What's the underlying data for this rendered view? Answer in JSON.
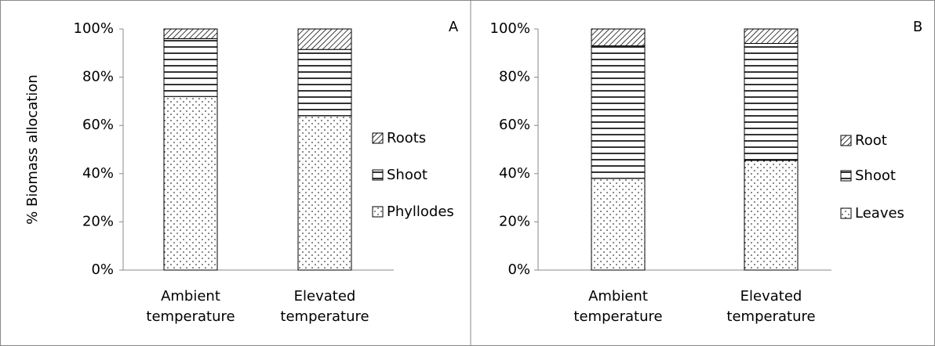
{
  "chart_data": [
    {
      "type": "stacked_bar",
      "title": "A",
      "y_label": "% Biomass allocation",
      "categories": [
        "Ambient temperature",
        "Elevated temperature"
      ],
      "series": [
        {
          "name": "Phyllodes",
          "pattern": "dots",
          "color": "#000000",
          "values": [
            72,
            64
          ]
        },
        {
          "name": "Shoot",
          "pattern": "horizontal",
          "color": "#000000",
          "values": [
            24,
            27.5
          ]
        },
        {
          "name": "Roots",
          "pattern": "diagonal",
          "color": "#000000",
          "values": [
            4,
            8.5
          ]
        }
      ],
      "ylim": [
        0,
        100
      ],
      "yticks": [
        {
          "value": 0,
          "label": "0%"
        },
        {
          "value": 20,
          "label": "20%"
        },
        {
          "value": 40,
          "label": "40%"
        },
        {
          "value": 60,
          "label": "60%"
        },
        {
          "value": 80,
          "label": "80%"
        },
        {
          "value": 100,
          "label": "100%"
        }
      ],
      "legend": "right"
    },
    {
      "type": "stacked_bar",
      "title": "B",
      "categories": [
        "Ambient temperature",
        "Elevated temperature"
      ],
      "series": [
        {
          "name": "Leaves",
          "pattern": "dots",
          "color": "#000000",
          "values": [
            38,
            45.5
          ]
        },
        {
          "name": "Shoot",
          "pattern": "horizontal",
          "color": "#000000",
          "values": [
            55,
            48.5
          ]
        },
        {
          "name": "Root",
          "pattern": "diagonal",
          "color": "#000000",
          "values": [
            7,
            6
          ]
        }
      ],
      "ylim": [
        0,
        100
      ],
      "yticks": [
        {
          "value": 0,
          "label": "0%"
        },
        {
          "value": 20,
          "label": "20%"
        },
        {
          "value": 40,
          "label": "40%"
        },
        {
          "value": 60,
          "label": "60%"
        },
        {
          "value": 80,
          "label": "80%"
        },
        {
          "value": 100,
          "label": "100%"
        }
      ],
      "legend": "right"
    }
  ]
}
